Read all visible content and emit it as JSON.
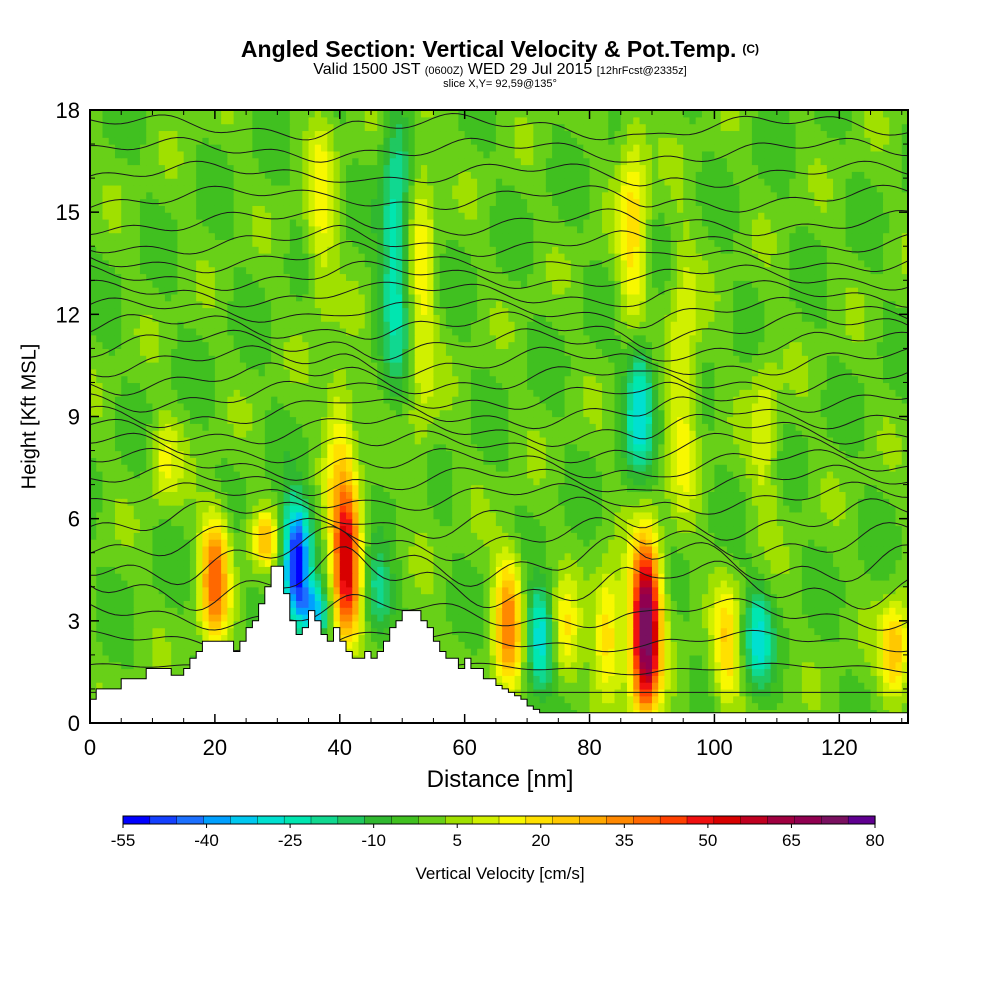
{
  "header": {
    "title": "Angled Section: Vertical Velocity & Pot.Temp.",
    "title_unit": "(C)",
    "subtitle_a": "Valid 1500 JST",
    "subtitle_b": "(0600Z)",
    "subtitle_c": "WED 29 Jul 2015",
    "subtitle_d": "[12hrFcst@2335z]",
    "slice": "slice X,Y= 92,59@135°"
  },
  "chart_data": {
    "type": "heatmap",
    "xlabel": "Distance [nm]",
    "ylabel": "Height [Kft MSL]",
    "xlim": [
      0,
      131
    ],
    "ylim": [
      0,
      18
    ],
    "x_ticks": [
      0,
      20,
      40,
      60,
      80,
      100,
      120
    ],
    "y_ticks": [
      0,
      3,
      6,
      9,
      12,
      15,
      18
    ],
    "colorbar": {
      "label": "Vertical Velocity [cm/s]",
      "tick_labels": [
        "-55",
        "-40",
        "-25",
        "-10",
        "5",
        "20",
        "35",
        "50",
        "65",
        "80"
      ],
      "levels": [
        -55,
        -50,
        -45,
        -40,
        -35,
        -30,
        -25,
        -20,
        -15,
        -10,
        -5,
        0,
        5,
        10,
        15,
        20,
        25,
        30,
        35,
        40,
        45,
        50,
        55,
        60,
        65,
        70,
        75,
        80
      ],
      "colors": [
        "#0000ff",
        "#1440ff",
        "#1c70ff",
        "#00a0ff",
        "#00c8f0",
        "#00e0d0",
        "#00e6b0",
        "#10d890",
        "#20c860",
        "#30b830",
        "#40c020",
        "#68d018",
        "#a0e000",
        "#d0f000",
        "#f8f800",
        "#ffe000",
        "#ffc800",
        "#ffa800",
        "#ff8800",
        "#ff6800",
        "#ff4000",
        "#f01010",
        "#d80000",
        "#c00020",
        "#a00040",
        "#900050",
        "#7a1060",
        "#600090"
      ]
    },
    "updrafts": [
      {
        "x": 20,
        "ybot": 2.5,
        "ytop": 6.2,
        "peak": 40
      },
      {
        "x": 28,
        "ybot": 4.6,
        "ytop": 6.2,
        "peak": 25
      },
      {
        "x": 41,
        "ybot": 2.5,
        "ytop": 7.0,
        "peak": 60
      },
      {
        "x": 67,
        "ybot": 1.0,
        "ytop": 5.0,
        "peak": 35
      },
      {
        "x": 76,
        "ybot": 1.0,
        "ytop": 4.0,
        "peak": 20
      },
      {
        "x": 83,
        "ybot": 1.0,
        "ytop": 4.5,
        "peak": 25
      },
      {
        "x": 89,
        "ybot": 0.3,
        "ytop": 5.3,
        "peak": 80
      },
      {
        "x": 102,
        "ybot": 0.3,
        "ytop": 4.0,
        "peak": 22
      },
      {
        "x": 129,
        "ybot": 0.8,
        "ytop": 3.5,
        "peak": 30
      },
      {
        "x": 40,
        "ybot": 6.5,
        "ytop": 10.5,
        "peak": 18
      },
      {
        "x": 53,
        "ybot": 8.0,
        "ytop": 18.0,
        "peak": 15
      },
      {
        "x": 37,
        "ybot": 12.0,
        "ytop": 18.0,
        "peak": 15
      },
      {
        "x": 87,
        "ybot": 11.0,
        "ytop": 18.0,
        "peak": 20
      },
      {
        "x": 95,
        "ybot": 6.0,
        "ytop": 14.0,
        "peak": 16
      },
      {
        "x": 12,
        "ybot": 6.5,
        "ytop": 9.0,
        "peak": 14
      },
      {
        "x": 108,
        "ybot": 6.0,
        "ytop": 11.0,
        "peak": 12
      }
    ],
    "downdrafts": [
      {
        "x": 33,
        "ybot": 3.0,
        "ytop": 6.5,
        "peak": -55
      },
      {
        "x": 36,
        "ybot": 2.5,
        "ytop": 4.0,
        "peak": -30
      },
      {
        "x": 72,
        "ybot": 1.0,
        "ytop": 4.0,
        "peak": -30
      },
      {
        "x": 88,
        "ybot": 7.5,
        "ytop": 11.5,
        "peak": -30
      },
      {
        "x": 49,
        "ybot": 10.0,
        "ytop": 18.0,
        "peak": -25
      },
      {
        "x": 46,
        "ybot": 2.5,
        "ytop": 5.0,
        "peak": -20
      },
      {
        "x": 107,
        "ybot": 1.0,
        "ytop": 4.0,
        "peak": -25
      }
    ],
    "terrain": {
      "x": [
        0,
        1,
        5,
        9,
        13,
        15,
        16,
        17,
        18,
        20,
        22,
        23,
        24,
        25,
        26,
        27,
        28,
        29,
        30,
        31,
        32,
        33,
        34,
        35,
        36,
        37,
        38,
        39,
        40,
        41,
        42,
        43,
        44,
        45,
        46,
        47,
        48,
        49,
        50,
        51,
        52,
        53,
        54,
        55,
        56,
        57,
        58,
        59,
        60,
        61,
        62,
        63,
        64,
        65,
        66,
        67,
        68,
        69,
        70,
        71,
        72,
        131
      ],
      "h": [
        0.7,
        1.0,
        1.3,
        1.6,
        1.4,
        1.6,
        1.9,
        2.1,
        2.4,
        2.4,
        2.4,
        2.1,
        2.4,
        2.8,
        3.0,
        3.5,
        4.0,
        4.6,
        4.6,
        3.8,
        3.0,
        2.6,
        2.8,
        3.3,
        3.0,
        2.6,
        2.4,
        2.8,
        2.4,
        2.1,
        1.9,
        1.9,
        2.1,
        1.9,
        2.1,
        2.4,
        2.8,
        3.0,
        3.3,
        3.3,
        3.3,
        3.0,
        2.8,
        2.4,
        2.1,
        1.9,
        1.9,
        1.6,
        1.9,
        1.6,
        1.6,
        1.3,
        1.3,
        1.1,
        1.0,
        0.9,
        0.8,
        0.7,
        0.5,
        0.4,
        0.3,
        0.3
      ]
    },
    "isentropes": [
      {
        "base": 0.9,
        "amp": 0.0
      },
      {
        "base": 1.6,
        "amp": 0.1
      },
      {
        "base": 2.4,
        "amp": 0.2
      },
      {
        "base": 3.2,
        "amp": 0.3
      },
      {
        "base": 4.1,
        "amp": 0.5
      },
      {
        "base": 4.8,
        "amp": 0.5
      },
      {
        "base": 5.4,
        "amp": 0.4
      },
      {
        "base": 6.0,
        "amp": 0.4
      },
      {
        "base": 6.6,
        "amp": 0.3
      },
      {
        "base": 7.1,
        "amp": 0.3
      },
      {
        "base": 7.6,
        "amp": 0.3
      },
      {
        "base": 8.1,
        "amp": 0.3
      },
      {
        "base": 8.6,
        "amp": 0.3
      },
      {
        "base": 9.1,
        "amp": 0.3
      },
      {
        "base": 9.6,
        "amp": 0.3
      },
      {
        "base": 10.1,
        "amp": 0.3
      },
      {
        "base": 10.6,
        "amp": 0.3
      },
      {
        "base": 11.1,
        "amp": 0.3
      },
      {
        "base": 11.6,
        "amp": 0.3
      },
      {
        "base": 12.1,
        "amp": 0.25
      },
      {
        "base": 12.6,
        "amp": 0.25
      },
      {
        "base": 13.1,
        "amp": 0.25
      },
      {
        "base": 13.6,
        "amp": 0.25
      },
      {
        "base": 14.1,
        "amp": 0.25
      },
      {
        "base": 14.7,
        "amp": 0.25
      },
      {
        "base": 15.4,
        "amp": 0.25
      },
      {
        "base": 16.1,
        "amp": 0.25
      },
      {
        "base": 16.8,
        "amp": 0.25
      },
      {
        "base": 17.5,
        "amp": 0.25
      }
    ]
  }
}
